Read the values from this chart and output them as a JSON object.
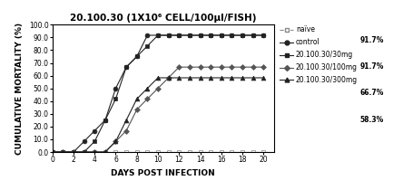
{
  "title": "20.100.30 (1X10⁶ CELL/100μl/FISH)",
  "xlabel": "DAYS POST INFECTION",
  "ylabel": "CUMULATIVE MORTALITY (%)",
  "ylim": [
    0,
    100
  ],
  "yticks": [
    0.0,
    10.0,
    20.0,
    30.0,
    40.0,
    50.0,
    60.0,
    70.0,
    80.0,
    90.0,
    100.0
  ],
  "xlim": [
    0,
    21
  ],
  "xticks": [
    0,
    2,
    4,
    6,
    8,
    10,
    12,
    14,
    16,
    18,
    20
  ],
  "series": {
    "naive": {
      "x": [
        0,
        1,
        2,
        3,
        4,
        5,
        6,
        7,
        8,
        9,
        10,
        11,
        12,
        13,
        14,
        15,
        16,
        17,
        18,
        19,
        20
      ],
      "y": [
        0,
        0,
        0,
        0,
        0,
        0,
        0,
        0,
        0,
        0,
        0,
        0,
        0,
        0,
        0,
        0,
        0,
        0,
        0,
        0,
        0
      ],
      "color": "#888888",
      "marker": "s",
      "linestyle": "--",
      "markerfacecolor": "white",
      "markersize": 3,
      "linewidth": 0.8,
      "label": "naïve"
    },
    "control": {
      "x": [
        0,
        1,
        2,
        3,
        4,
        5,
        6,
        7,
        8,
        9,
        10,
        11,
        12,
        13,
        14,
        15,
        16,
        17,
        18,
        19,
        20
      ],
      "y": [
        0,
        0,
        0,
        8.3,
        16.7,
        25.0,
        50.0,
        66.7,
        75.0,
        91.7,
        91.7,
        91.7,
        91.7,
        91.7,
        91.7,
        91.7,
        91.7,
        91.7,
        91.7,
        91.7,
        91.7
      ],
      "color": "#222222",
      "marker": "o",
      "linestyle": "-",
      "markerfacecolor": "#222222",
      "markersize": 3.5,
      "linewidth": 0.8,
      "label": "control",
      "final": "91.7%"
    },
    "30mg": {
      "x": [
        0,
        1,
        2,
        3,
        4,
        5,
        6,
        7,
        8,
        9,
        10,
        11,
        12,
        13,
        14,
        15,
        16,
        17,
        18,
        19,
        20
      ],
      "y": [
        0,
        0,
        0,
        0,
        8.3,
        25.0,
        41.7,
        66.7,
        75.0,
        83.3,
        91.7,
        91.7,
        91.7,
        91.7,
        91.7,
        91.7,
        91.7,
        91.7,
        91.7,
        91.7,
        91.7
      ],
      "color": "#222222",
      "marker": "s",
      "linestyle": "-",
      "markerfacecolor": "#222222",
      "markersize": 3.5,
      "linewidth": 0.8,
      "label": "20.100.30/30mg",
      "final": "91.7%"
    },
    "100mg": {
      "x": [
        0,
        1,
        2,
        3,
        4,
        5,
        6,
        7,
        8,
        9,
        10,
        11,
        12,
        13,
        14,
        15,
        16,
        17,
        18,
        19,
        20
      ],
      "y": [
        0,
        0,
        0,
        0,
        0,
        0,
        8.3,
        16.7,
        33.3,
        41.7,
        50.0,
        58.3,
        66.7,
        66.7,
        66.7,
        66.7,
        66.7,
        66.7,
        66.7,
        66.7,
        66.7
      ],
      "color": "#555555",
      "marker": "D",
      "linestyle": "-",
      "markerfacecolor": "#555555",
      "markersize": 3,
      "linewidth": 0.8,
      "label": "20.100.30/100mg",
      "final": "66.7%"
    },
    "300mg": {
      "x": [
        0,
        1,
        2,
        3,
        4,
        5,
        6,
        7,
        8,
        9,
        10,
        11,
        12,
        13,
        14,
        15,
        16,
        17,
        18,
        19,
        20
      ],
      "y": [
        0,
        0,
        0,
        0,
        0,
        0,
        8.3,
        25.0,
        41.7,
        50.0,
        58.3,
        58.3,
        58.3,
        58.3,
        58.3,
        58.3,
        58.3,
        58.3,
        58.3,
        58.3,
        58.3
      ],
      "color": "#222222",
      "marker": "^",
      "linestyle": "-",
      "markerfacecolor": "#222222",
      "markersize": 3.5,
      "linewidth": 0.8,
      "label": "20.100.30/300mg",
      "final": "58.3%"
    }
  },
  "background_color": "#ffffff",
  "title_fontsize": 7.5,
  "axis_label_fontsize": 6.5,
  "tick_fontsize": 5.5,
  "legend_fontsize": 5.5
}
